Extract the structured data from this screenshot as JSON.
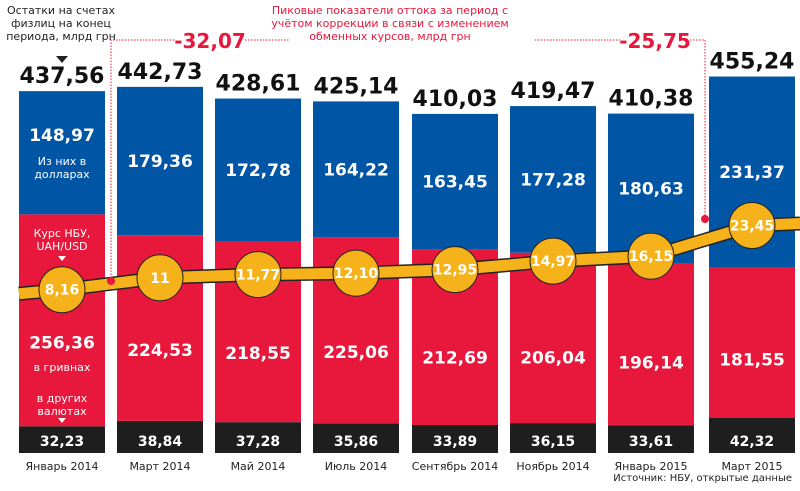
{
  "chart_data": {
    "type": "bar",
    "stacked": true,
    "categories": [
      "Январь 2014",
      "Март 2014",
      "Май 2014",
      "Июль 2014",
      "Сентябрь 2014",
      "Ноябрь 2014",
      "Январь 2015",
      "Март 2015"
    ],
    "totals": [
      "437,56",
      "442,73",
      "428,61",
      "425,14",
      "410,03",
      "419,47",
      "410,38",
      "455,24"
    ],
    "series": [
      {
        "name": "в других валютах",
        "color": "#1e1e1e",
        "values": [
          32.23,
          38.84,
          37.28,
          35.86,
          33.89,
          36.15,
          33.61,
          42.32
        ],
        "labels": [
          "32,23",
          "38,84",
          "37,28",
          "35,86",
          "33,89",
          "36,15",
          "33,61",
          "42,32"
        ]
      },
      {
        "name": "в гривнах",
        "color": "#e8173c",
        "values": [
          256.36,
          224.53,
          218.55,
          225.06,
          212.69,
          206.04,
          196.14,
          181.55
        ],
        "labels": [
          "256,36",
          "224,53",
          "218,55",
          "225,06",
          "212,69",
          "206,04",
          "196,14",
          "181,55"
        ]
      },
      {
        "name": "Из них в долларах",
        "color": "#0055a5",
        "values": [
          148.97,
          179.36,
          172.78,
          164.22,
          163.45,
          177.28,
          180.63,
          231.37
        ],
        "labels": [
          "148,97",
          "179,36",
          "172,78",
          "164,22",
          "163,45",
          "177,28",
          "180,63",
          "231,37"
        ]
      }
    ],
    "line": {
      "name": "Курс НБУ, UAH/USD",
      "color": "#f6b21a",
      "values": [
        8.16,
        11,
        11.77,
        12.1,
        12.95,
        14.97,
        16.15,
        23.45
      ],
      "labels": [
        "8,16",
        "11",
        "11,77",
        "12,10",
        "12,95",
        "14,97",
        "16,15",
        "23,45"
      ]
    },
    "annotations": {
      "total_note": "Остатки на счетах физлиц на конец периода, млрд грн",
      "usd_note": "Из них в долларах",
      "rate_note": "Курс НБУ, UAH/USD",
      "uah_note": "в гривнах",
      "other_note": "в других валютах",
      "peak_note": "Пиковые показатели оттока за период с учётом коррекции в связи с изменением обменных курсов, млрд грн",
      "peak1": "-32,07",
      "peak2": "-25,75"
    },
    "source": "Источник: НБУ, открытые данные"
  }
}
